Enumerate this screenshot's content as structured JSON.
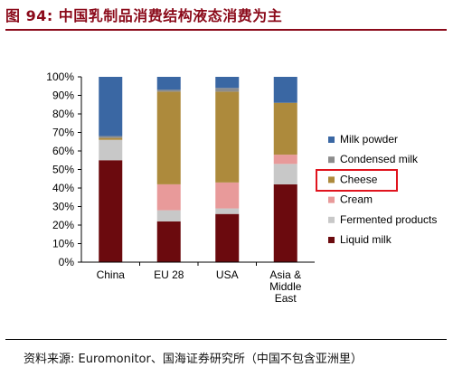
{
  "title": "图 94:  中国乳制品消费结构液态消费为主",
  "source": "资料来源:  Euromonitor、国海证券研究所（中国不包含亚洲里）",
  "chart_data": {
    "type": "bar",
    "stacked": true,
    "categories": [
      "China",
      "EU 28",
      "USA",
      "Asia & Middle East"
    ],
    "category_lines": [
      [
        "China"
      ],
      [
        "EU 28"
      ],
      [
        "USA"
      ],
      [
        "Asia &",
        "Middle",
        "East"
      ]
    ],
    "y_ticks": [
      "0%",
      "10%",
      "20%",
      "30%",
      "40%",
      "50%",
      "60%",
      "70%",
      "80%",
      "90%",
      "100%"
    ],
    "ylim": [
      0,
      100
    ],
    "legend_position": "right",
    "series": [
      {
        "name": "Liquid milk",
        "color": "#6b0a0e",
        "values": [
          55,
          22,
          26,
          42
        ]
      },
      {
        "name": "Fermented products",
        "color": "#c8c8c8",
        "values": [
          11,
          6,
          3,
          11
        ]
      },
      {
        "name": "Cream",
        "color": "#e89a9a",
        "values": [
          0,
          14,
          14,
          5
        ]
      },
      {
        "name": "Cheese",
        "color": "#ad8a3c",
        "values": [
          1,
          50,
          49,
          28
        ]
      },
      {
        "name": "Condensed milk",
        "color": "#8c8c8c",
        "values": [
          1,
          1,
          2,
          0
        ]
      },
      {
        "name": "Milk powder",
        "color": "#3a67a3",
        "values": [
          32,
          7,
          6,
          14
        ]
      }
    ],
    "legend_order": [
      "Milk powder",
      "Condensed milk",
      "Cheese",
      "Cream",
      "Fermented products",
      "Liquid milk"
    ],
    "highlighted_legend_entry": "Cheese"
  }
}
